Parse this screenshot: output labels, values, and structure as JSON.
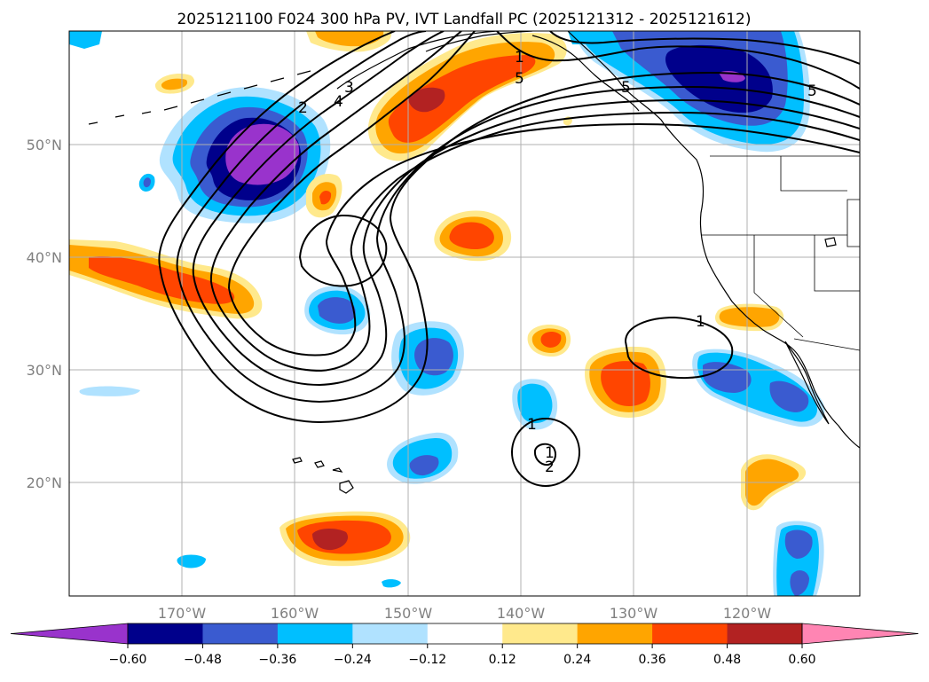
{
  "title": "2025121100 F024 300 hPa PV, IVT Landfall PC (2025121312 - 2025121612)",
  "lon_labels": [
    "170°W",
    "160°W",
    "150°W",
    "140°W",
    "130°W",
    "120°W"
  ],
  "lat_labels": [
    "50°N",
    "40°N",
    "30°N",
    "20°N"
  ],
  "colorbar": {
    "tick_labels": [
      "−0.60",
      "−0.48",
      "−0.36",
      "−0.24",
      "−0.12",
      "0.12",
      "0.24",
      "0.36",
      "0.48",
      "0.60"
    ],
    "colors": [
      "#9933cc",
      "#00008b",
      "#3a5bd0",
      "#00bfff",
      "#b0e2ff",
      "#ffffff",
      "#ffe98c",
      "#ffa500",
      "#ff4500",
      "#b22222",
      "#ff85b3"
    ]
  },
  "contour_labels": [
    "1",
    "2",
    "3",
    "4",
    "5",
    "5",
    "1",
    "1",
    "2",
    "5",
    "1"
  ],
  "chart_data": {
    "type": "map",
    "projection": "PlateCarree",
    "lon_range": [
      -180,
      -110
    ],
    "lat_range": [
      10,
      60
    ],
    "fill_field": "IVT Landfall PC",
    "fill_levels": [
      -0.6,
      -0.48,
      -0.36,
      -0.24,
      -0.12,
      0.12,
      0.24,
      0.36,
      0.48,
      0.6
    ],
    "contour_field": "300 hPa PV",
    "contour_levels": [
      1,
      2,
      3,
      4,
      5
    ],
    "grid": true
  }
}
